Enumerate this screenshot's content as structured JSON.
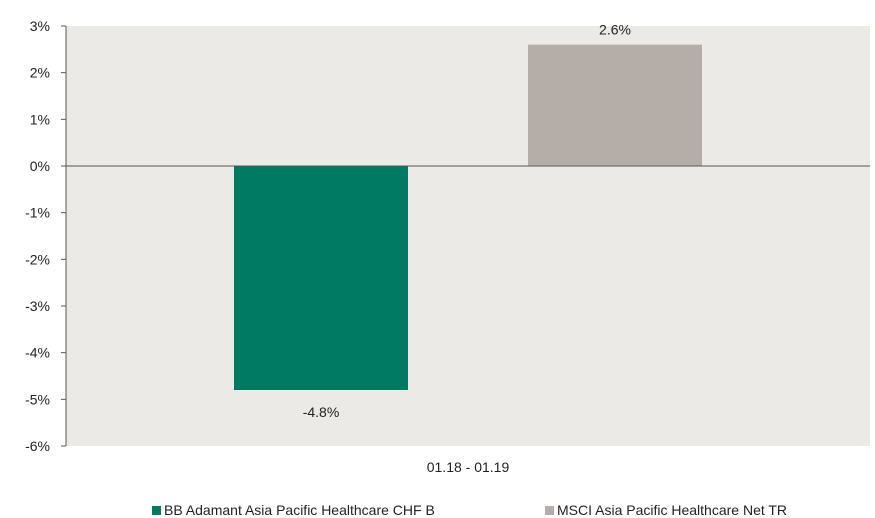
{
  "chart_data": {
    "type": "bar",
    "categories": [
      "01.18 - 01.19"
    ],
    "series": [
      {
        "name": "BB Adamant Asia Pacific Healthcare CHF B",
        "values": [
          -4.8
        ],
        "value_labels": [
          "-4.8%"
        ],
        "color": "#007A62"
      },
      {
        "name": "MSCI Asia Pacific Healthcare Net TR",
        "values": [
          2.6
        ],
        "value_labels": [
          "2.6%"
        ],
        "color": "#B4ADA8"
      }
    ],
    "ylim": [
      -6,
      3
    ],
    "yticks": [
      3,
      2,
      1,
      0,
      -1,
      -2,
      -3,
      -4,
      -5,
      -6
    ],
    "ytick_labels": [
      "3%",
      "2%",
      "1%",
      "0%",
      "-1%",
      "-2%",
      "-3%",
      "-4%",
      "-5%",
      "-6%"
    ],
    "title": "",
    "xlabel": "",
    "ylabel": "",
    "grid": false,
    "legend_position": "bottom",
    "plot_background": "#ECEAE6"
  }
}
